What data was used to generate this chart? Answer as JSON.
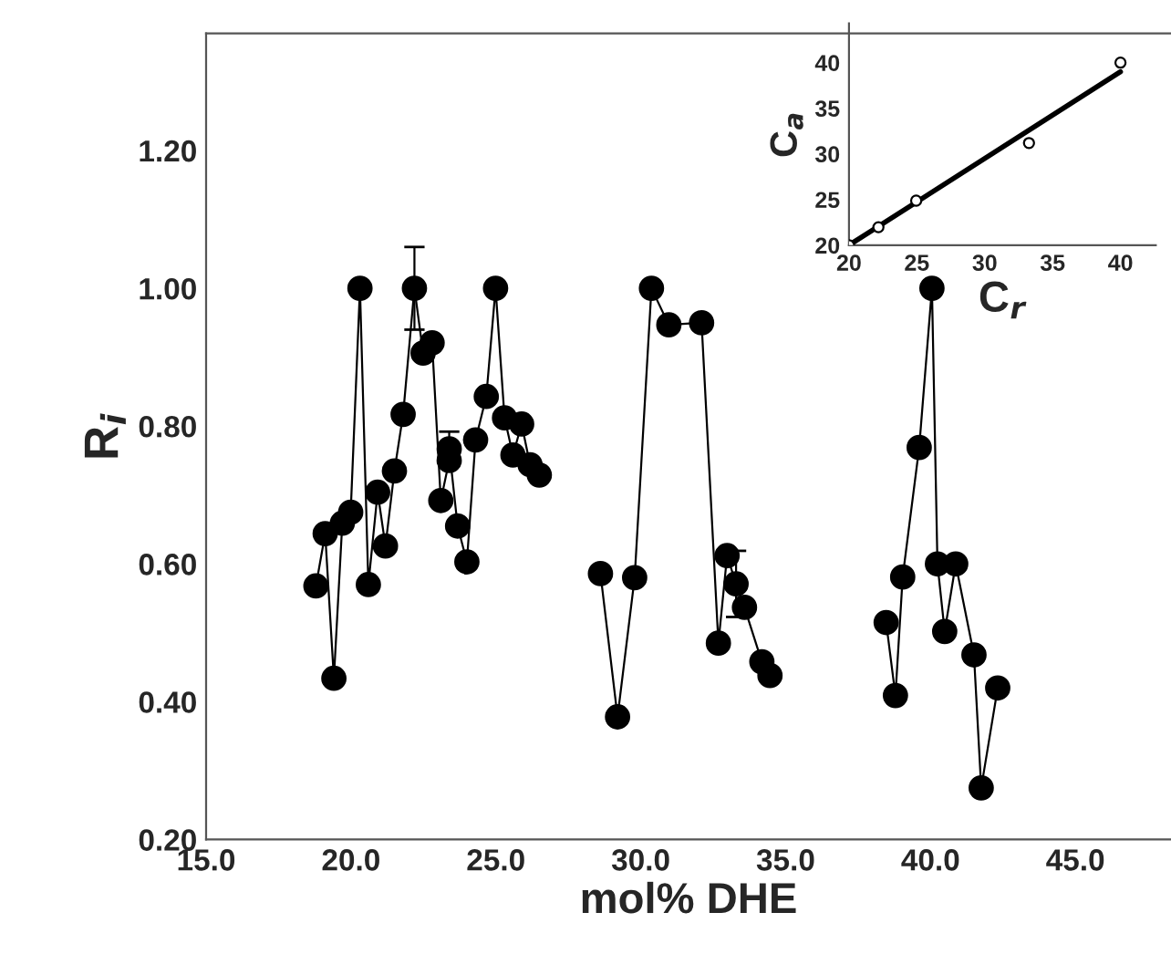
{
  "chart_data": [
    {
      "type": "line",
      "xlabel": "mol% DHE",
      "ylabel": "R$_{i}$",
      "xlim": [
        15,
        48.3
      ],
      "ylim": [
        0.2,
        1.37
      ],
      "xticks": [
        {
          "value": 15,
          "label": "15.0"
        },
        {
          "value": 20,
          "label": "20.0"
        },
        {
          "value": 25,
          "label": "25.0"
        },
        {
          "value": 30,
          "label": "30.0"
        },
        {
          "value": 35,
          "label": "35.0"
        },
        {
          "value": 40,
          "label": "40.0"
        },
        {
          "value": 45,
          "label": "45.0"
        }
      ],
      "yticks": [
        {
          "value": 0.2,
          "label": "0.20"
        },
        {
          "value": 0.4,
          "label": "0.40"
        },
        {
          "value": 0.6,
          "label": "0.60"
        },
        {
          "value": 0.8,
          "label": "0.80"
        },
        {
          "value": 1.0,
          "label": "1.00"
        },
        {
          "value": 1.2,
          "label": "1.20"
        }
      ],
      "grid": false,
      "legend": false,
      "marker": "circle",
      "line_style": "solid",
      "series": [
        {
          "color": "#000000",
          "x": [
            18.79,
            19.11,
            19.41,
            19.7,
            19.99,
            20.31,
            20.6,
            20.92,
            21.19,
            21.5,
            21.8,
            22.19,
            22.49,
            22.8,
            23.1,
            23.39,
            23.39,
            23.68,
            24.0,
            24.3,
            24.67,
            24.99,
            25.3,
            25.59,
            25.89,
            26.18,
            26.5,
            27.5,
            28.61,
            29.2,
            29.79,
            30.37,
            30.97,
            32.1,
            32.68,
            32.98,
            33.29,
            33.58,
            34.18,
            34.46,
            36.5,
            38.47,
            38.79,
            39.04,
            39.61,
            40.05,
            40.24,
            40.49,
            40.87,
            41.5,
            41.75,
            42.32
          ],
          "values": [
            0.568,
            0.644,
            0.434,
            0.659,
            0.675,
            1.0,
            0.57,
            0.704,
            0.626,
            0.735,
            0.817,
            1.0,
            0.906,
            0.921,
            0.692,
            0.75,
            0.767,
            0.655,
            0.603,
            0.78,
            0.843,
            1.0,
            0.812,
            0.758,
            0.803,
            0.744,
            0.729,
            null,
            0.586,
            0.378,
            0.58,
            1.0,
            0.947,
            0.95,
            0.485,
            0.612,
            0.571,
            0.537,
            0.458,
            0.438,
            null,
            0.515,
            0.409,
            0.581,
            0.769,
            1.0,
            0.6,
            0.502,
            0.6,
            0.468,
            0.275,
            0.42
          ],
          "errors": [
            null,
            null,
            null,
            null,
            null,
            null,
            null,
            null,
            null,
            null,
            null,
            0.06,
            null,
            null,
            null,
            null,
            0.025,
            null,
            null,
            null,
            null,
            null,
            null,
            null,
            null,
            null,
            null,
            null,
            null,
            null,
            null,
            null,
            null,
            null,
            null,
            null,
            0.048,
            null,
            null,
            null,
            null,
            null,
            null,
            null,
            null,
            null,
            null,
            null,
            null,
            null,
            null,
            null
          ]
        }
      ]
    },
    {
      "type": "scatter",
      "xlabel": "C$_{r}$",
      "ylabel": "C$_{a}$",
      "xlim": [
        20,
        42.6
      ],
      "ylim": [
        20,
        44.3
      ],
      "xticks": [
        20,
        25,
        30,
        35,
        40
      ],
      "yticks": [
        20,
        25,
        30,
        35,
        40
      ],
      "grid": false,
      "legend": false,
      "series": [
        {
          "type": "scatter",
          "color": "#000000",
          "marker": "circle",
          "x": [
            20,
            22.17,
            24.95,
            33.26,
            40
          ],
          "values": [
            20,
            21.97,
            24.88,
            31.19,
            40
          ]
        },
        {
          "type": "line",
          "color": "#000000",
          "marker": "none",
          "x": [
            20,
            40
          ],
          "values": [
            20,
            39.0
          ]
        }
      ]
    }
  ]
}
